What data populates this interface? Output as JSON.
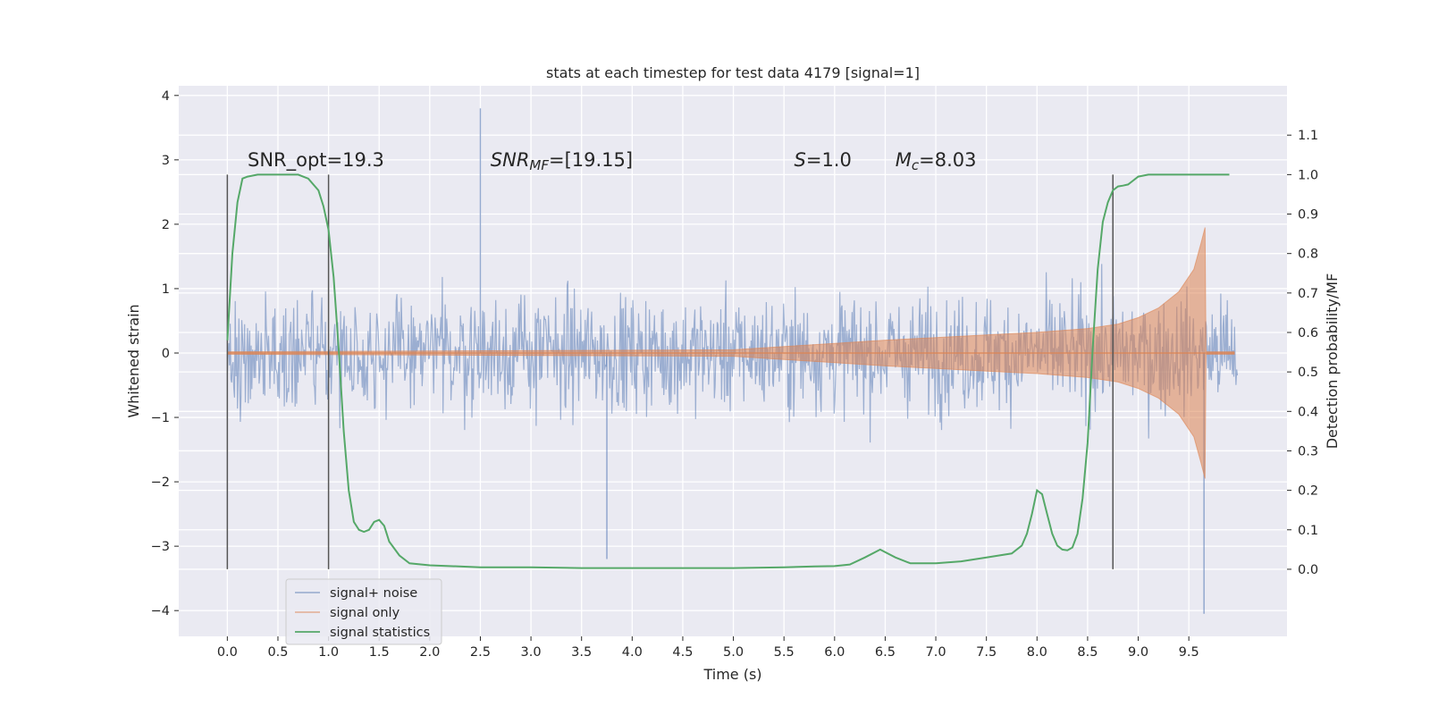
{
  "chart_data": {
    "type": "line",
    "title": "stats at each timestep for test data 4179 [signal=1]",
    "xlabel": "Time (s)",
    "ylabel": "Whitened strain",
    "y2label": "Detection probability/MF",
    "xlim": [
      -0.48,
      10.47
    ],
    "ylim": [
      -4.4,
      4.15
    ],
    "y2lim": [
      -0.17,
      1.225
    ],
    "x_ticks": [
      0.0,
      0.5,
      1.0,
      1.5,
      2.0,
      2.5,
      3.0,
      3.5,
      4.0,
      4.5,
      5.0,
      5.5,
      6.0,
      6.5,
      7.0,
      7.5,
      8.0,
      8.5,
      9.0,
      9.5
    ],
    "x_tick_labels": [
      "0.0",
      "0.5",
      "1.0",
      "1.5",
      "2.0",
      "2.5",
      "3.0",
      "3.5",
      "4.0",
      "4.5",
      "5.0",
      "5.5",
      "6.0",
      "6.5",
      "7.0",
      "7.5",
      "8.0",
      "8.5",
      "9.0",
      "9.5"
    ],
    "y_ticks": [
      -4,
      -3,
      -2,
      -1,
      0,
      1,
      2,
      3,
      4
    ],
    "y_tick_labels": [
      "−4",
      "−3",
      "−2",
      "−1",
      "0",
      "1",
      "2",
      "3",
      "4"
    ],
    "y2_ticks": [
      0.0,
      0.1,
      0.2,
      0.3,
      0.4,
      0.5,
      0.6,
      0.7,
      0.8,
      0.9,
      1.0,
      1.1
    ],
    "y2_tick_labels": [
      "0.0",
      "0.1",
      "0.2",
      "0.3",
      "0.4",
      "0.5",
      "0.6",
      "0.7",
      "0.8",
      "0.9",
      "1.0",
      "1.1"
    ],
    "grid": true,
    "legend_position": "lower-left",
    "series": [
      {
        "name": "signal+ noise",
        "axis": "left",
        "color": "#4c72b0",
        "description_values": "dense noise, |strain| mostly within ~2.5, spikes up to 3.8 near t=2.5 and down to -4.05 near t=9.65",
        "extremes": [
          {
            "x": 2.5,
            "y": 3.8
          },
          {
            "x": 3.75,
            "y": -3.2
          },
          {
            "x": 9.65,
            "y": -4.05
          }
        ],
        "x_range": [
          0.0,
          9.98
        ]
      },
      {
        "name": "signal only",
        "axis": "left",
        "color": "#dd8452",
        "envelope": [
          [
            0.0,
            0.02
          ],
          [
            5.0,
            0.05
          ],
          [
            5.5,
            0.1
          ],
          [
            6.0,
            0.15
          ],
          [
            6.5,
            0.2
          ],
          [
            7.0,
            0.24
          ],
          [
            7.5,
            0.28
          ],
          [
            8.0,
            0.32
          ],
          [
            8.5,
            0.38
          ],
          [
            8.8,
            0.45
          ],
          [
            9.0,
            0.55
          ],
          [
            9.2,
            0.7
          ],
          [
            9.4,
            0.95
          ],
          [
            9.55,
            1.3
          ],
          [
            9.62,
            1.7
          ],
          [
            9.66,
            1.95
          ],
          [
            9.67,
            0.02
          ],
          [
            9.95,
            0.02
          ]
        ]
      },
      {
        "name": "signal statistics",
        "axis": "right",
        "color": "#55a868",
        "x": [
          0.0,
          0.05,
          0.1,
          0.15,
          0.2,
          0.3,
          0.4,
          0.5,
          0.6,
          0.7,
          0.8,
          0.9,
          0.95,
          1.0,
          1.05,
          1.1,
          1.15,
          1.2,
          1.25,
          1.3,
          1.35,
          1.4,
          1.45,
          1.5,
          1.55,
          1.6,
          1.7,
          1.8,
          2.0,
          2.5,
          3.0,
          3.5,
          4.0,
          4.5,
          5.0,
          5.5,
          5.8,
          6.0,
          6.15,
          6.3,
          6.45,
          6.6,
          6.75,
          7.0,
          7.25,
          7.5,
          7.75,
          7.85,
          7.9,
          7.95,
          8.0,
          8.05,
          8.1,
          8.15,
          8.2,
          8.25,
          8.3,
          8.35,
          8.4,
          8.45,
          8.5,
          8.55,
          8.6,
          8.65,
          8.7,
          8.75,
          8.8,
          8.85,
          8.9,
          8.95,
          9.0,
          9.1,
          9.2,
          9.3,
          9.4,
          9.5,
          9.6,
          9.7,
          9.8,
          9.9
        ],
        "y": [
          0.58,
          0.8,
          0.93,
          0.99,
          0.995,
          1.0,
          1.0,
          1.0,
          1.0,
          1.0,
          0.99,
          0.96,
          0.92,
          0.86,
          0.74,
          0.56,
          0.35,
          0.2,
          0.12,
          0.1,
          0.095,
          0.1,
          0.12,
          0.125,
          0.11,
          0.07,
          0.035,
          0.015,
          0.01,
          0.005,
          0.005,
          0.003,
          0.003,
          0.003,
          0.003,
          0.005,
          0.007,
          0.008,
          0.012,
          0.03,
          0.05,
          0.03,
          0.015,
          0.015,
          0.02,
          0.03,
          0.04,
          0.06,
          0.09,
          0.14,
          0.2,
          0.19,
          0.14,
          0.09,
          0.06,
          0.05,
          0.048,
          0.055,
          0.09,
          0.18,
          0.32,
          0.56,
          0.76,
          0.88,
          0.93,
          0.96,
          0.97,
          0.972,
          0.975,
          0.985,
          0.995,
          1.0,
          1.0,
          1.0,
          1.0,
          1.0,
          1.0,
          1.0,
          1.0,
          1.0
        ]
      }
    ],
    "vertical_lines": [
      0.0,
      1.0,
      8.75
    ],
    "annotations": [
      {
        "text": "SNR_opt=19.3",
        "x": 0.2,
        "y": 3.0
      },
      {
        "text": "SNR_MF=[19.15]",
        "x": 2.6,
        "y": 3.0
      },
      {
        "text": "S=1.0",
        "x": 5.6,
        "y": 3.0
      },
      {
        "text": "M_c=8.03",
        "x": 6.6,
        "y": 3.0
      }
    ]
  }
}
